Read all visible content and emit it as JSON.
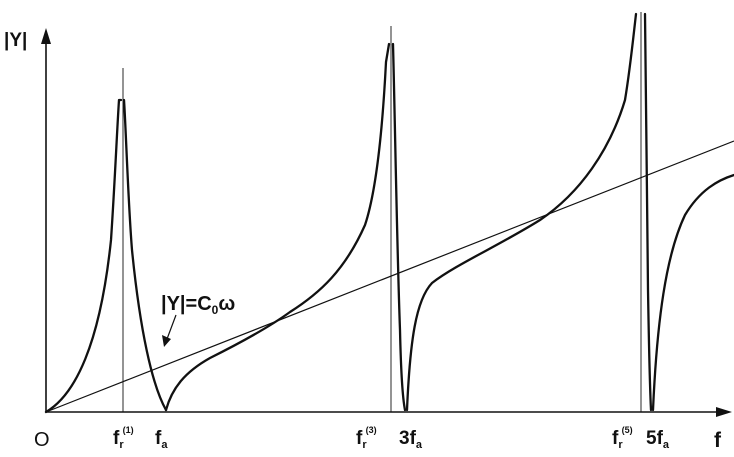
{
  "axes": {
    "y_label": "|Y|",
    "x_label": "f",
    "origin": "O"
  },
  "ticks": {
    "fr1": {
      "base": "f",
      "sub": "r",
      "sup": "(1)"
    },
    "fa": {
      "base": "f",
      "sub": "a"
    },
    "fr3": {
      "base": "f",
      "sub": "r",
      "sup": "(3)"
    },
    "fa3": {
      "coef": "3",
      "base": "f",
      "sub": "a"
    },
    "fr5": {
      "base": "f",
      "sub": "r",
      "sup": "(5)"
    },
    "fa5": {
      "coef": "5",
      "base": "f",
      "sub": "a"
    }
  },
  "annotation": {
    "lhs": "|Y|=C",
    "sub": "0",
    "omega": "ω"
  },
  "colors": {
    "ink": "#111111",
    "background": "#ffffff"
  }
}
